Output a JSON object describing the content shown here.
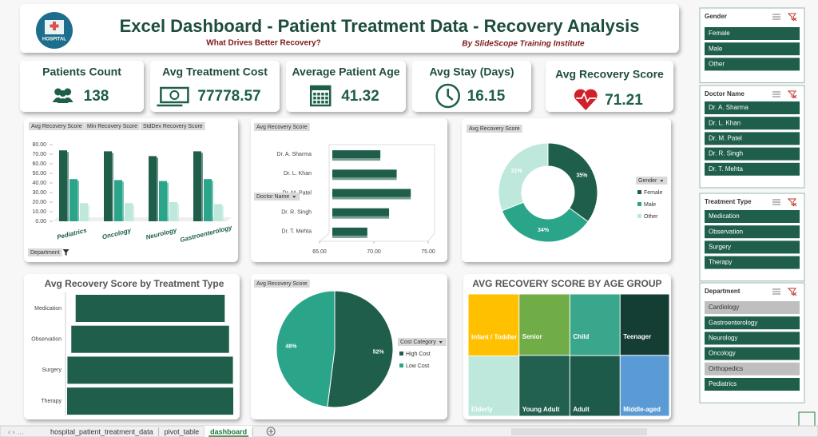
{
  "header": {
    "logo": "HOSPITAL",
    "title": "Excel Dashboard - Patient Treatment Data - Recovery Analysis",
    "subtitle": "What Drives Better Recovery?",
    "byline": "By SlideScope Training Institute"
  },
  "kpis": [
    {
      "label": "Patients Count",
      "value": 138
    },
    {
      "label": "Avg Treatment Cost",
      "value": 77778.57
    },
    {
      "label": "Average Patient Age",
      "value": 41.32
    },
    {
      "label": "Avg Stay (Days)",
      "value": 16.15
    },
    {
      "label": "Avg Recovery Score",
      "value": 71.21
    }
  ],
  "chart_data": [
    {
      "type": "bar3d",
      "axis_field": "Department",
      "categories": [
        "Pediatrics",
        "Oncology",
        "Neurology",
        "Gastroenterology"
      ],
      "series": [
        {
          "name": "Avg Recovery Score",
          "color": "#1e5e4b",
          "values": [
            74,
            73,
            68,
            73
          ]
        },
        {
          "name": "Min Recovery Score",
          "color": "#2aa58a",
          "values": [
            44,
            43,
            42,
            44
          ]
        },
        {
          "name": "StdDev Recovery Score",
          "color": "#bfe8dd",
          "values": [
            19,
            19,
            20,
            18
          ]
        }
      ],
      "ylim": [
        0,
        80
      ],
      "yticks": [
        {
          "value": 0,
          "label": "0.00"
        },
        {
          "value": 10,
          "label": "10.00"
        },
        {
          "value": 20,
          "label": "20.00"
        },
        {
          "value": 30,
          "label": "30.00"
        },
        {
          "value": 40,
          "label": "40.00"
        },
        {
          "value": 50,
          "label": "50.00"
        },
        {
          "value": 60,
          "label": "60.00"
        },
        {
          "value": 70,
          "label": "70.00"
        },
        {
          "value": 80,
          "label": "80.00"
        }
      ]
    },
    {
      "type": "hbar",
      "value_field": "Avg Recovery Score",
      "axis_field": "Doctor Name",
      "color": "#1e5e4b",
      "categories": [
        "Dr. A. Sharma",
        "Dr. L. Khan",
        "Dr. M. Patel",
        "Dr. R. Singh",
        "Dr. T. Mehta"
      ],
      "values": [
        70.6,
        72.1,
        73.4,
        71.4,
        69.4
      ],
      "xlim": [
        65,
        75
      ],
      "xticks": [
        {
          "value": 65,
          "label": "65.00"
        },
        {
          "value": 70,
          "label": "70.00"
        },
        {
          "value": 75,
          "label": "75.00"
        }
      ]
    },
    {
      "type": "donut",
      "value_field": "Avg Recovery Score",
      "legend_title": "Gender",
      "categories": [
        "Female",
        "Male",
        "Other"
      ],
      "values": [
        35,
        34,
        31
      ],
      "value_labels": [
        "35%",
        "34%",
        "31%"
      ],
      "colors": [
        "#1e5e4b",
        "#2aa58a",
        "#bfe8dd"
      ]
    },
    {
      "type": "funnel",
      "title": "Avg Recovery Score by Treatment Type",
      "color": "#1e5e4b",
      "categories": [
        "Medication",
        "Observation",
        "Surgery",
        "Therapy"
      ],
      "values": [
        65.5,
        69.3,
        72.7,
        73.0
      ]
    },
    {
      "type": "pie",
      "value_field": "Avg Recovery Score",
      "legend_title": "Cost Category",
      "categories": [
        "High Cost",
        "Low Cost"
      ],
      "values": [
        52,
        48
      ],
      "value_labels": [
        "52%",
        "48%"
      ],
      "colors": [
        "#1e5e4b",
        "#2aa58a"
      ]
    },
    {
      "type": "treemap",
      "title": "AVG RECOVERY SCORE BY AGE GROUP",
      "categories": [
        "Infant / Toddler",
        "Senior",
        "Child",
        "Teenager",
        "Elderly",
        "Young Adult",
        "Adult",
        "Middle-aged"
      ],
      "values": [
        73.0,
        72.0,
        71.5,
        70.0,
        71.0,
        71.5,
        70.5,
        69.5
      ],
      "colors": [
        "#ffc000",
        "#70ad47",
        "#3aa68c",
        "#143d33",
        "#bfe8dd",
        "#22604f",
        "#1d5a4a",
        "#5b9bd5"
      ]
    }
  ],
  "slicers": [
    {
      "title": "Gender",
      "items": [
        {
          "label": "Female",
          "has_data": true
        },
        {
          "label": "Male",
          "has_data": true
        },
        {
          "label": "Other",
          "has_data": true
        }
      ]
    },
    {
      "title": "Doctor Name",
      "items": [
        {
          "label": "Dr. A. Sharma",
          "has_data": true
        },
        {
          "label": "Dr. L. Khan",
          "has_data": true
        },
        {
          "label": "Dr. M. Patel",
          "has_data": true
        },
        {
          "label": "Dr. R. Singh",
          "has_data": true
        },
        {
          "label": "Dr. T. Mehta",
          "has_data": true
        }
      ]
    },
    {
      "title": "Treatment Type",
      "items": [
        {
          "label": "Medication",
          "has_data": true
        },
        {
          "label": "Observation",
          "has_data": true
        },
        {
          "label": "Surgery",
          "has_data": true
        },
        {
          "label": "Therapy",
          "has_data": true
        }
      ]
    },
    {
      "title": "Department",
      "items": [
        {
          "label": "Cardiology",
          "has_data": false
        },
        {
          "label": "Gastroenterology",
          "has_data": true
        },
        {
          "label": "Neurology",
          "has_data": true
        },
        {
          "label": "Oncology",
          "has_data": true
        },
        {
          "label": "Orthopedics",
          "has_data": false
        },
        {
          "label": "Pediatrics",
          "has_data": true
        }
      ]
    }
  ],
  "tabs": [
    {
      "label": "hospital_patient_treatment_data",
      "active": false
    },
    {
      "label": "pivot_table",
      "active": false
    },
    {
      "label": "dashboard",
      "active": true
    }
  ]
}
